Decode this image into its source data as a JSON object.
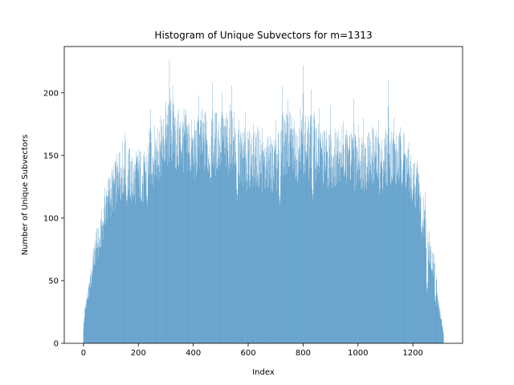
{
  "chart_data": {
    "type": "bar",
    "title": "Histogram of Unique Subvectors for m=1313",
    "xlabel": "Index",
    "ylabel": "Number of Unique Subvectors",
    "xlim": [
      -70,
      1381
    ],
    "ylim": [
      0,
      237
    ],
    "xticks": [
      0,
      200,
      400,
      600,
      800,
      1000,
      1200
    ],
    "yticks": [
      0,
      50,
      100,
      150,
      200
    ],
    "grid": false,
    "legend": "none",
    "bar_color": "#1f77b4",
    "bar_count": 1313,
    "envelope": {
      "x": [
        0,
        5,
        10,
        20,
        30,
        40,
        50,
        60,
        70,
        80,
        100,
        120,
        140,
        160,
        180,
        200,
        220,
        240,
        260,
        280,
        300,
        320,
        340,
        360,
        380,
        400,
        420,
        440,
        460,
        480,
        500,
        520,
        540,
        560,
        580,
        600,
        620,
        640,
        660,
        680,
        700,
        720,
        740,
        760,
        780,
        800,
        820,
        840,
        860,
        880,
        900,
        920,
        940,
        960,
        980,
        1000,
        1020,
        1040,
        1060,
        1080,
        1100,
        1120,
        1140,
        1160,
        1180,
        1200,
        1220,
        1240,
        1260,
        1270,
        1280,
        1290,
        1300,
        1312
      ],
      "y": [
        12,
        25,
        33,
        42,
        55,
        70,
        80,
        82,
        95,
        110,
        120,
        128,
        140,
        140,
        128,
        137,
        130,
        148,
        150,
        155,
        162,
        170,
        160,
        162,
        160,
        152,
        158,
        162,
        150,
        160,
        162,
        158,
        165,
        155,
        148,
        145,
        150,
        148,
        140,
        145,
        140,
        155,
        160,
        158,
        155,
        162,
        155,
        160,
        150,
        148,
        145,
        150,
        155,
        150,
        145,
        150,
        145,
        148,
        150,
        140,
        148,
        152,
        145,
        150,
        140,
        130,
        125,
        100,
        75,
        65,
        55,
        38,
        22,
        8
      ]
    },
    "peaks": [
      {
        "x": 20,
        "y": 45
      },
      {
        "x": 35,
        "y": 72
      },
      {
        "x": 45,
        "y": 88
      },
      {
        "x": 90,
        "y": 130
      },
      {
        "x": 130,
        "y": 152
      },
      {
        "x": 150,
        "y": 168
      },
      {
        "x": 245,
        "y": 187
      },
      {
        "x": 270,
        "y": 172
      },
      {
        "x": 300,
        "y": 193
      },
      {
        "x": 313,
        "y": 226
      },
      {
        "x": 325,
        "y": 206
      },
      {
        "x": 333,
        "y": 180
      },
      {
        "x": 365,
        "y": 175
      },
      {
        "x": 420,
        "y": 198
      },
      {
        "x": 445,
        "y": 185
      },
      {
        "x": 470,
        "y": 208
      },
      {
        "x": 505,
        "y": 200
      },
      {
        "x": 540,
        "y": 206
      },
      {
        "x": 590,
        "y": 185
      },
      {
        "x": 650,
        "y": 172
      },
      {
        "x": 700,
        "y": 178
      },
      {
        "x": 725,
        "y": 205
      },
      {
        "x": 745,
        "y": 195
      },
      {
        "x": 790,
        "y": 188
      },
      {
        "x": 800,
        "y": 222
      },
      {
        "x": 830,
        "y": 203
      },
      {
        "x": 860,
        "y": 188
      },
      {
        "x": 900,
        "y": 190
      },
      {
        "x": 930,
        "y": 170
      },
      {
        "x": 985,
        "y": 195
      },
      {
        "x": 1020,
        "y": 180
      },
      {
        "x": 1075,
        "y": 178
      },
      {
        "x": 1110,
        "y": 210
      },
      {
        "x": 1130,
        "y": 180
      },
      {
        "x": 1165,
        "y": 168
      },
      {
        "x": 1245,
        "y": 121
      },
      {
        "x": 1260,
        "y": 90
      },
      {
        "x": 1278,
        "y": 71
      }
    ],
    "dips": [
      {
        "x": 158,
        "y": 110
      },
      {
        "x": 232,
        "y": 110
      },
      {
        "x": 560,
        "y": 115
      },
      {
        "x": 715,
        "y": 110
      },
      {
        "x": 835,
        "y": 115
      },
      {
        "x": 1198,
        "y": 115
      },
      {
        "x": 1232,
        "y": 85
      },
      {
        "x": 1252,
        "y": 40
      },
      {
        "x": 1282,
        "y": 30
      }
    ]
  }
}
